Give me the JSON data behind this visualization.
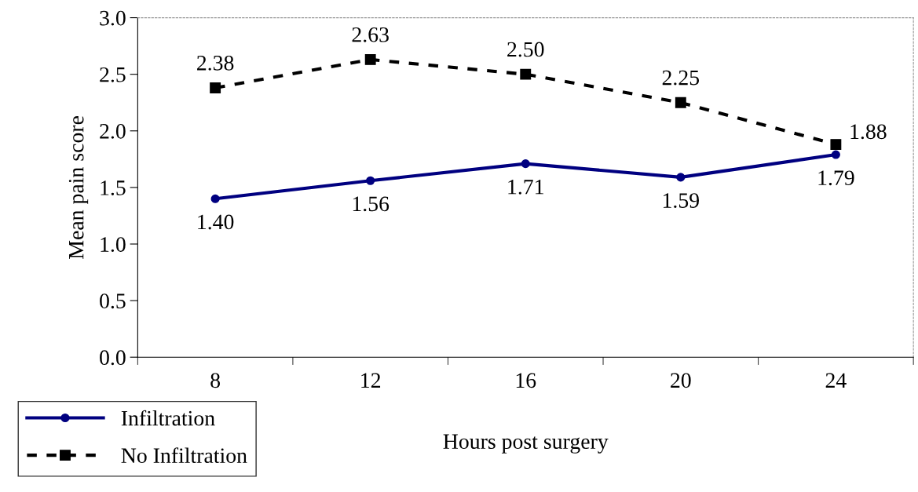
{
  "chart_data": {
    "type": "line",
    "xlabel": "Hours post surgery",
    "ylabel": "Mean pain score",
    "categories": [
      "8",
      "12",
      "16",
      "20",
      "24"
    ],
    "series": [
      {
        "name": "Infiltration",
        "color": "#000080",
        "values": [
          1.4,
          1.56,
          1.71,
          1.59,
          1.79
        ],
        "marker": "circle",
        "line_style": "solid",
        "value_labels": [
          "1.40",
          "1.56",
          "1.71",
          "1.59",
          "1.79"
        ]
      },
      {
        "name": "No Infiltration",
        "color": "#000000",
        "values": [
          2.38,
          2.63,
          2.5,
          2.25,
          1.88
        ],
        "marker": "square",
        "line_style": "dashed",
        "value_labels": [
          "2.38",
          "2.63",
          "2.50",
          "2.25",
          "1.88"
        ]
      }
    ],
    "ylim": [
      0,
      3
    ],
    "yticks": [
      {
        "value": 0,
        "label": "0.0"
      },
      {
        "value": 0.5,
        "label": "0.5"
      },
      {
        "value": 1,
        "label": "1.0"
      },
      {
        "value": 1.5,
        "label": "1.5"
      },
      {
        "value": 2,
        "label": "2.0"
      },
      {
        "value": 2.5,
        "label": "2.5"
      },
      {
        "value": 3,
        "label": "3.0"
      }
    ],
    "grid": false,
    "legend": "bottom left"
  }
}
